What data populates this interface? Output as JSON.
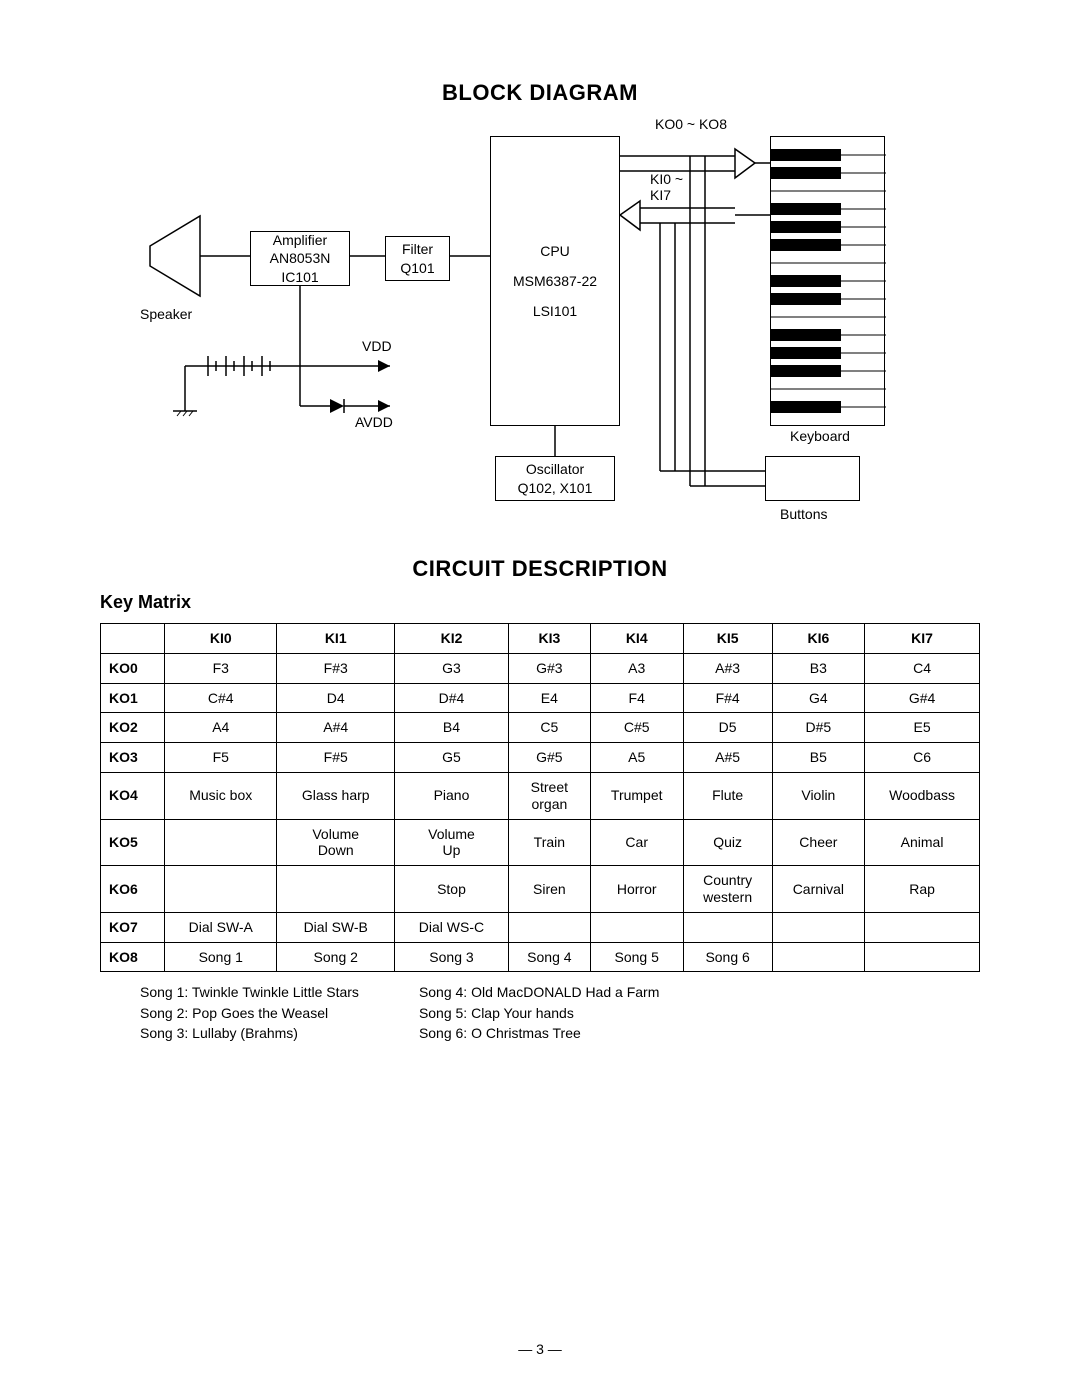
{
  "section1_title": "BLOCK DIAGRAM",
  "section2_title": "CIRCUIT DESCRIPTION",
  "subsection_title": "Key Matrix",
  "page_number": "— 3 —",
  "diagram": {
    "blocks": {
      "amplifier": {
        "line1": "Amplifier",
        "line2": "AN8053N",
        "line3": "IC101"
      },
      "filter": {
        "line1": "Filter",
        "line2": "Q101"
      },
      "cpu": {
        "line1": "CPU",
        "line2": "MSM6387-22",
        "line3": "LSI101"
      },
      "oscillator": {
        "line1": "Oscillator",
        "line2": "Q102, X101"
      }
    },
    "labels": {
      "speaker": "Speaker",
      "vdd": "VDD",
      "avdd": "AVDD",
      "ko": "KO0 ~ KO8",
      "ki": "KI0 ~\nKI7",
      "keyboard": "Keyboard",
      "buttons": "Buttons"
    }
  },
  "matrix": {
    "col_headers": [
      "",
      "KI0",
      "KI1",
      "KI2",
      "KI3",
      "KI4",
      "KI5",
      "KI6",
      "KI7"
    ],
    "rows": [
      [
        "KO0",
        "F3",
        "F#3",
        "G3",
        "G#3",
        "A3",
        "A#3",
        "B3",
        "C4"
      ],
      [
        "KO1",
        "C#4",
        "D4",
        "D#4",
        "E4",
        "F4",
        "F#4",
        "G4",
        "G#4"
      ],
      [
        "KO2",
        "A4",
        "A#4",
        "B4",
        "C5",
        "C#5",
        "D5",
        "D#5",
        "E5"
      ],
      [
        "KO3",
        "F5",
        "F#5",
        "G5",
        "G#5",
        "A5",
        "A#5",
        "B5",
        "C6"
      ],
      [
        "KO4",
        "Music box",
        "Glass harp",
        "Piano",
        "Street\norgan",
        "Trumpet",
        "Flute",
        "Violin",
        "Woodbass"
      ],
      [
        "KO5",
        "",
        "Volume\nDown",
        "Volume\nUp",
        "Train",
        "Car",
        "Quiz",
        "Cheer",
        "Animal"
      ],
      [
        "KO6",
        "",
        "",
        "Stop",
        "Siren",
        "Horror",
        "Country\nwestern",
        "Carnival",
        "Rap"
      ],
      [
        "KO7",
        "Dial SW-A",
        "Dial SW-B",
        "Dial WS-C",
        "",
        "",
        "",
        "",
        ""
      ],
      [
        "KO8",
        "Song 1",
        "Song 2",
        "Song 3",
        "Song 4",
        "Song 5",
        "Song 6",
        "",
        ""
      ]
    ]
  },
  "songs": {
    "left": [
      "Song 1: Twinkle Twinkle Little Stars",
      "Song 2: Pop Goes the Weasel",
      "Song 3: Lullaby (Brahms)"
    ],
    "right": [
      "Song 4: Old MacDONALD Had a Farm",
      "Song 5: Clap Your hands",
      "Song 6: O Christmas Tree"
    ]
  },
  "style": {
    "background_color": "#ffffff",
    "text_color": "#000000",
    "border_color": "#000000",
    "title_fontsize": 22,
    "body_fontsize": 14
  }
}
